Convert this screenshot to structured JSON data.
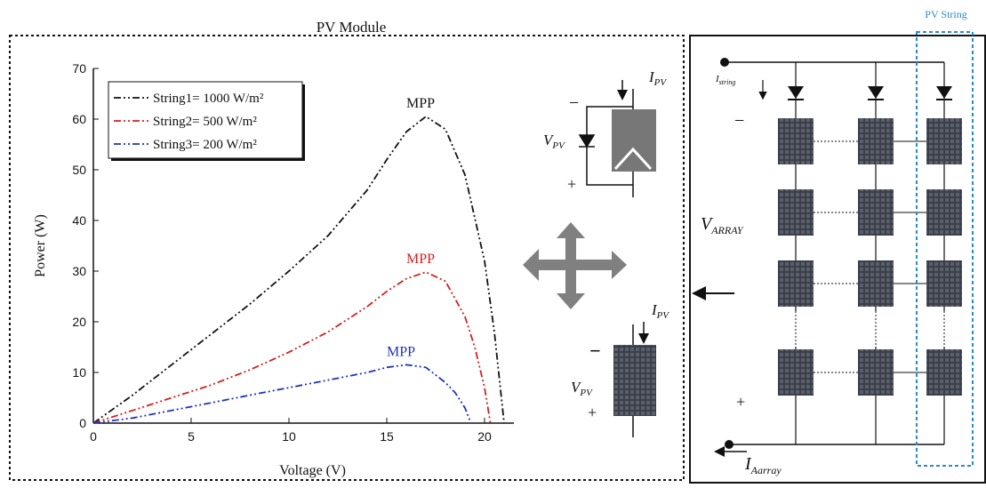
{
  "title": "PV Module",
  "chart_data": {
    "type": "line",
    "xlabel": "Voltage (V)",
    "ylabel": "Power (W)",
    "xlim": [
      0,
      21.5
    ],
    "ylim": [
      0,
      70
    ],
    "xticks": [
      0,
      5,
      10,
      15,
      20
    ],
    "yticks": [
      0,
      10,
      20,
      30,
      40,
      50,
      60,
      70
    ],
    "legend": "upper left",
    "series": [
      {
        "name": "String1= 1000 W/m²",
        "color": "#111111",
        "x": [
          0,
          2,
          4,
          6,
          8,
          10,
          12,
          14,
          15,
          16,
          17,
          18,
          19,
          20,
          20.5,
          21
        ],
        "values": [
          0,
          5.5,
          11.5,
          17.5,
          23.5,
          30,
          37,
          46,
          52,
          57.5,
          60.5,
          58,
          49,
          32,
          18,
          0
        ]
      },
      {
        "name": "String2= 500 W/m²",
        "color": "#d42020",
        "x": [
          0,
          2,
          4,
          6,
          8,
          10,
          12,
          14,
          15,
          16,
          17,
          18,
          19,
          19.5,
          20,
          20.3
        ],
        "values": [
          0,
          2.5,
          5,
          7.5,
          10.5,
          14,
          18,
          23,
          26,
          28.5,
          29.8,
          28,
          21,
          15,
          7,
          0
        ]
      },
      {
        "name": "String3= 200 W/m²",
        "color": "#1f33b8",
        "x": [
          0,
          2,
          4,
          6,
          8,
          10,
          12,
          14,
          15,
          16,
          17,
          18,
          18.5,
          19,
          19.3
        ],
        "values": [
          0,
          1,
          2.5,
          4,
          5.5,
          7,
          8.5,
          10,
          11,
          11.5,
          11,
          8,
          6,
          3,
          0
        ]
      }
    ],
    "annotations": [
      "MPP",
      "MPP",
      "MPP"
    ]
  },
  "module": {
    "current": {
      "symbol": "I",
      "subscript": "PV"
    },
    "voltage": {
      "symbol": "V",
      "subscript": "PV"
    },
    "minus": "−",
    "plus": "+"
  },
  "module_panel": {
    "current": {
      "symbol": "I",
      "subscript": "PV"
    },
    "voltage": {
      "symbol": "V",
      "subscript": "PV"
    },
    "minus": "−",
    "plus": "+"
  },
  "array": {
    "string_label": "PV String",
    "string_current": {
      "symbol": "I",
      "subscript": "string"
    },
    "array_voltage": {
      "symbol": "V",
      "subscript": "ARRAY"
    },
    "array_current": {
      "symbol": "I",
      "subscript": "Aarray"
    },
    "minus": "−",
    "plus": "+"
  }
}
